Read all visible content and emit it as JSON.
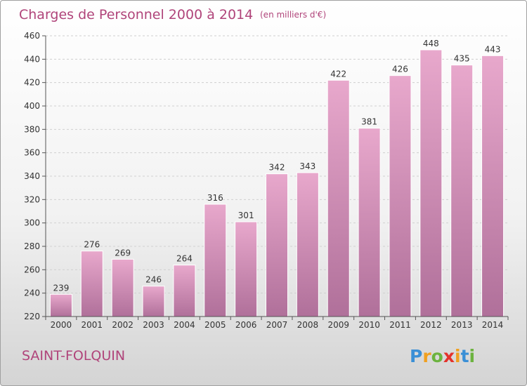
{
  "chart_data": {
    "type": "bar",
    "title": "Charges de Personnel 2000 à 2014",
    "subtitle": "(en milliers d'€)",
    "categories": [
      "2000",
      "2001",
      "2002",
      "2003",
      "2004",
      "2005",
      "2006",
      "2007",
      "2008",
      "2009",
      "2010",
      "2011",
      "2012",
      "2013",
      "2014"
    ],
    "values": [
      239,
      276,
      269,
      246,
      264,
      316,
      301,
      342,
      343,
      422,
      381,
      426,
      448,
      435,
      443
    ],
    "ylim": [
      220,
      460
    ],
    "yticks": [
      220,
      240,
      260,
      280,
      300,
      320,
      340,
      360,
      380,
      400,
      420,
      440,
      460
    ],
    "grid": true,
    "bar_color_top": "#e8a8cc",
    "bar_color_bottom": "#b0709a"
  },
  "commune": "SAINT-FOLQUIN",
  "logo": {
    "letters": [
      "P",
      "r",
      "o",
      "x",
      "i",
      "t",
      "i"
    ],
    "colors": [
      "#3a8fd6",
      "#f0a020",
      "#6cb33f",
      "#e4322b",
      "#f0a020",
      "#3a8fd6",
      "#6cb33f"
    ]
  }
}
